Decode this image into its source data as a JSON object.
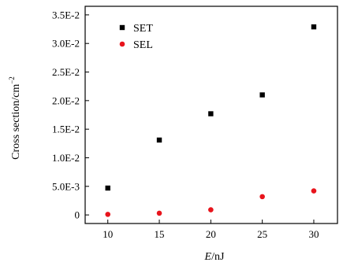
{
  "chart_data": {
    "type": "scatter",
    "title": "",
    "xlabel_italic": "E",
    "xlabel_rest": "/nJ",
    "ylabel_main": "Cross section/cm",
    "ylabel_sup": "−2",
    "x_ticks": [
      10,
      15,
      20,
      25,
      30
    ],
    "x_tick_labels": [
      "10",
      "15",
      "20",
      "25",
      "30"
    ],
    "y_ticks": [
      0,
      0.005,
      0.01,
      0.015,
      0.02,
      0.025,
      0.03,
      0.035
    ],
    "y_tick_labels": [
      "0",
      "5.0E-3",
      "1.0E-2",
      "1.5E-2",
      "2.0E-2",
      "2.5E-2",
      "3.0E-2",
      "3.5E-2"
    ],
    "xlim": [
      7.8,
      32.3
    ],
    "ylim": [
      -0.0015,
      0.0365
    ],
    "grid": false,
    "legend_position": "top-left",
    "series": [
      {
        "name": "SET",
        "marker": "square",
        "color": "#000000",
        "x": [
          10,
          15,
          20,
          25,
          30
        ],
        "y": [
          0.0047,
          0.0131,
          0.0177,
          0.021,
          0.0329
        ]
      },
      {
        "name": "SEL",
        "marker": "circle",
        "color": "#e8141c",
        "x": [
          10,
          15,
          20,
          25,
          30
        ],
        "y": [
          0.0001,
          0.0003,
          0.0009,
          0.0032,
          0.0042
        ]
      }
    ]
  }
}
